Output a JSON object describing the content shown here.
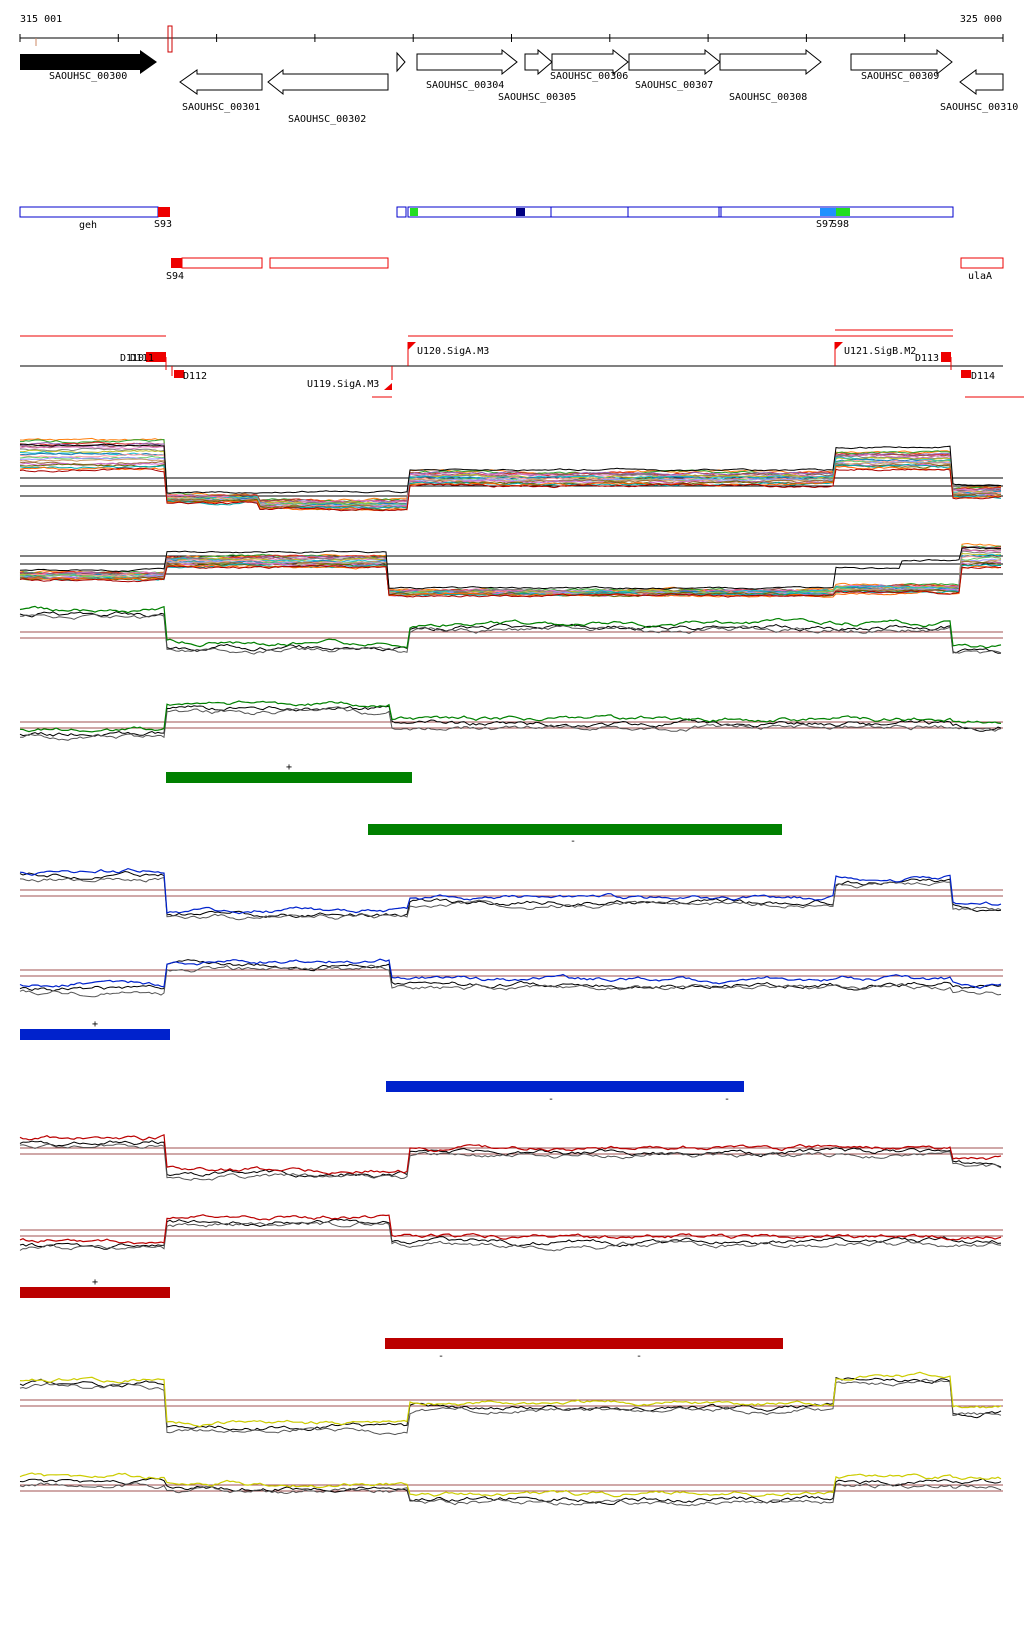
{
  "coords": {
    "start": "315 001",
    "end": "325 000"
  },
  "genes": [
    {
      "label": "SAOUHSC_00300",
      "strand": "+",
      "filled": true
    },
    {
      "label": "SAOUHSC_00301",
      "strand": "-",
      "filled": false
    },
    {
      "label": "SAOUHSC_00302",
      "strand": "-",
      "filled": false
    },
    {
      "label": "SAOUHSC_00304",
      "strand": "+",
      "filled": false
    },
    {
      "label": "SAOUHSC_00305",
      "strand": "+",
      "filled": false
    },
    {
      "label": "SAOUHSC_00306",
      "strand": "+",
      "filled": false
    },
    {
      "label": "SAOUHSC_00307",
      "strand": "+",
      "filled": false
    },
    {
      "label": "SAOUHSC_00308",
      "strand": "+",
      "filled": false
    },
    {
      "label": "SAOUHSC_00309",
      "strand": "+",
      "filled": false
    },
    {
      "label": "SAOUHSC_00310",
      "strand": "-",
      "filled": false
    }
  ],
  "features_plus": [
    "geh",
    "S93",
    "S97",
    "S98"
  ],
  "features_minus": [
    "S94",
    "ulaA"
  ],
  "tss": [
    "D110",
    "D111",
    "D112",
    "U119.SigA.M3",
    "U120.SigA.M3",
    "U121.SigB.M2",
    "D113",
    "D114"
  ],
  "condition_colors": [
    "#008000",
    "#0022cc",
    "#bb0000",
    "#cccc00"
  ],
  "segment_marks": {
    "plus": "+",
    "minus": "-"
  },
  "colors": {
    "gene_fill": "#000000",
    "feature_plus": "#0000cc",
    "feature_minus": "#ee0000",
    "tss": "#ee0000",
    "green": "#008000",
    "blue": "#0022cc",
    "red": "#bb0000",
    "yellow": "#cccc00"
  }
}
